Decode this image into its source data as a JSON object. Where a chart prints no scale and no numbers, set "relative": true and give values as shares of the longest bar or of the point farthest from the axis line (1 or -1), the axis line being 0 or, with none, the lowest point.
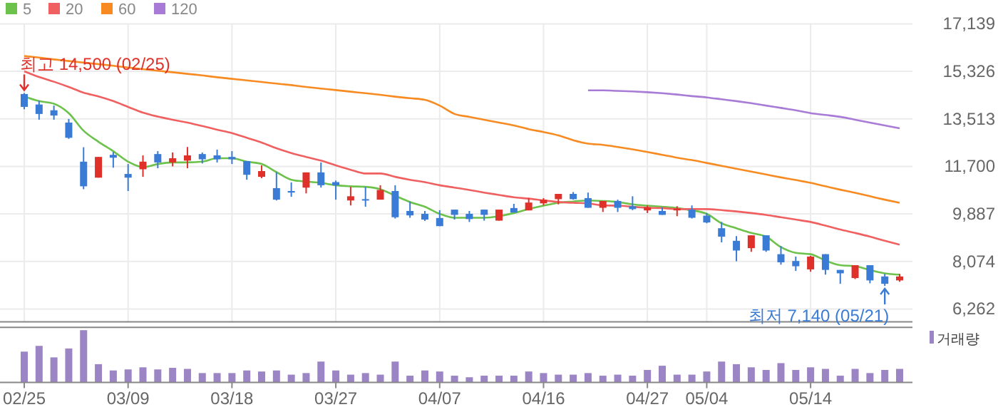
{
  "chart_data": [
    {
      "type": "candlestick",
      "categories": [
        "02/25",
        null,
        null,
        null,
        null,
        null,
        null,
        "03/09",
        null,
        null,
        null,
        null,
        null,
        null,
        "03/18",
        null,
        null,
        null,
        null,
        null,
        null,
        "03/27",
        null,
        null,
        null,
        null,
        null,
        null,
        "04/07",
        null,
        null,
        null,
        null,
        null,
        null,
        "04/16",
        null,
        null,
        null,
        null,
        null,
        null,
        "04/27",
        null,
        null,
        null,
        "05/04",
        null,
        null,
        null,
        null,
        null,
        null,
        "05/14",
        null,
        null,
        null,
        null,
        null,
        null
      ],
      "ohlc": [
        [
          14460,
          14500,
          13880,
          13970
        ],
        [
          14060,
          14200,
          13480,
          13700
        ],
        [
          13840,
          14020,
          13480,
          13640
        ],
        [
          13370,
          13510,
          12750,
          12790
        ],
        [
          11880,
          12430,
          10830,
          10940
        ],
        [
          11270,
          12060,
          11270,
          12060
        ],
        [
          12140,
          12250,
          11650,
          12030
        ],
        [
          11410,
          11790,
          10760,
          11270
        ],
        [
          11590,
          12120,
          11300,
          11880
        ],
        [
          12170,
          12280,
          11630,
          11850
        ],
        [
          11850,
          12230,
          11700,
          12010
        ],
        [
          11920,
          12440,
          11630,
          12120
        ],
        [
          12170,
          12230,
          11810,
          11970
        ],
        [
          12120,
          12340,
          11850,
          11970
        ],
        [
          12060,
          12280,
          11790,
          11970
        ],
        [
          11900,
          11900,
          11190,
          11380
        ],
        [
          11300,
          11740,
          11250,
          11520
        ],
        [
          10870,
          11480,
          10400,
          10430
        ],
        [
          10760,
          11090,
          10540,
          10700
        ],
        [
          10890,
          11470,
          10670,
          11470
        ],
        [
          11470,
          11850,
          10890,
          10980
        ],
        [
          11100,
          11160,
          10430,
          10980
        ],
        [
          10400,
          10920,
          10210,
          10560
        ],
        [
          10450,
          10920,
          10160,
          10400
        ],
        [
          10430,
          10980,
          10430,
          10800
        ],
        [
          10760,
          10980,
          9710,
          9760
        ],
        [
          10000,
          10360,
          9740,
          9830
        ],
        [
          9890,
          10000,
          9620,
          9670
        ],
        [
          9730,
          10030,
          9420,
          9420
        ],
        [
          10050,
          10050,
          9670,
          9850
        ],
        [
          9890,
          10000,
          9580,
          9690
        ],
        [
          10050,
          10050,
          9630,
          9850
        ],
        [
          9630,
          10050,
          9630,
          10050
        ],
        [
          10110,
          10270,
          9940,
          9940
        ],
        [
          10020,
          10490,
          10020,
          10320
        ],
        [
          10290,
          10490,
          10210,
          10430
        ],
        [
          10450,
          10650,
          10250,
          10650
        ],
        [
          10650,
          10720,
          10430,
          10450
        ],
        [
          10490,
          10700,
          10120,
          10120
        ],
        [
          10120,
          10380,
          9960,
          10380
        ],
        [
          10380,
          10430,
          9960,
          10120
        ],
        [
          10180,
          10560,
          10030,
          10070
        ],
        [
          10020,
          10210,
          9920,
          10140
        ],
        [
          10000,
          10140,
          9850,
          9850
        ],
        [
          10020,
          10180,
          9800,
          10090
        ],
        [
          10050,
          10210,
          9710,
          9740
        ],
        [
          9820,
          9920,
          9530,
          9560
        ],
        [
          9340,
          9580,
          8800,
          9020
        ],
        [
          8860,
          9040,
          8080,
          8490
        ],
        [
          8580,
          9070,
          8440,
          9070
        ],
        [
          9070,
          9070,
          8440,
          8490
        ],
        [
          8350,
          8660,
          7950,
          8040
        ],
        [
          8090,
          8260,
          7710,
          7890
        ],
        [
          7770,
          8290,
          7680,
          8260
        ],
        [
          8350,
          8350,
          7570,
          7750
        ],
        [
          7750,
          7750,
          7220,
          7620
        ],
        [
          7440,
          7930,
          7400,
          7930
        ],
        [
          7930,
          7930,
          7240,
          7350
        ],
        [
          7500,
          7600,
          7140,
          7220
        ],
        [
          7350,
          7600,
          7300,
          7500
        ]
      ],
      "series": [
        {
          "name": "5",
          "type": "line",
          "color": "#6cc24a",
          "values": [
            14370,
            14190,
            14090,
            13730,
            13060,
            12640,
            12280,
            11880,
            11670,
            11790,
            11850,
            11850,
            11880,
            12010,
            12010,
            11880,
            11790,
            11480,
            11190,
            11120,
            11070,
            10980,
            10940,
            10920,
            10830,
            10580,
            10340,
            10160,
            9890,
            9740,
            9740,
            9740,
            9800,
            9920,
            10070,
            10200,
            10310,
            10360,
            10400,
            10380,
            10340,
            10250,
            10200,
            10160,
            10110,
            10020,
            9890,
            9530,
            9340,
            9160,
            9020,
            8620,
            8400,
            8350,
            8110,
            7930,
            7890,
            7750,
            7620,
            7570
          ]
        },
        {
          "name": "20",
          "type": "line",
          "color": "#f06060",
          "values": [
            15330,
            15110,
            14930,
            14730,
            14510,
            14370,
            14190,
            13970,
            13750,
            13600,
            13480,
            13370,
            13240,
            13100,
            12970,
            12790,
            12610,
            12390,
            12210,
            12060,
            11920,
            11740,
            11570,
            11430,
            11430,
            11300,
            11190,
            11100,
            10980,
            10890,
            10800,
            10700,
            10610,
            10520,
            10470,
            10400,
            10340,
            10310,
            10290,
            10210,
            10200,
            10160,
            10120,
            10110,
            10070,
            10070,
            10070,
            10030,
            9980,
            9920,
            9850,
            9760,
            9670,
            9580,
            9440,
            9290,
            9160,
            9020,
            8860,
            8710
          ]
        },
        {
          "name": "60",
          "type": "line",
          "color": "#f78b22",
          "values": [
            15910,
            15850,
            15780,
            15720,
            15660,
            15600,
            15540,
            15470,
            15410,
            15350,
            15290,
            15230,
            15170,
            15100,
            15040,
            14980,
            14920,
            14860,
            14800,
            14730,
            14670,
            14610,
            14550,
            14490,
            14430,
            14360,
            14300,
            14240,
            14020,
            13700,
            13590,
            13480,
            13370,
            13260,
            13120,
            13010,
            12880,
            12700,
            12570,
            12520,
            12440,
            12350,
            12250,
            12140,
            12030,
            11940,
            11830,
            11720,
            11610,
            11500,
            11390,
            11280,
            11180,
            11070,
            10940,
            10810,
            10690,
            10560,
            10430,
            10310
          ]
        },
        {
          "name": "120",
          "type": "line",
          "color": "#a77bd6",
          "values": [
            null,
            null,
            null,
            null,
            null,
            null,
            null,
            null,
            null,
            null,
            null,
            null,
            null,
            null,
            null,
            null,
            null,
            null,
            null,
            null,
            null,
            null,
            null,
            null,
            null,
            null,
            null,
            null,
            null,
            null,
            null,
            null,
            null,
            null,
            null,
            null,
            null,
            null,
            14600,
            14600,
            14580,
            14560,
            14530,
            14490,
            14440,
            14380,
            14330,
            14260,
            14190,
            14110,
            14020,
            13930,
            13840,
            13730,
            13660,
            13590,
            13480,
            13370,
            13260,
            13150
          ]
        }
      ],
      "ylim": [
        5772,
        17139
      ],
      "yticks": [
        {
          "value": 6262,
          "label": "6,262"
        },
        {
          "value": 8074,
          "label": "8,074"
        },
        {
          "value": 9887,
          "label": "9,887"
        },
        {
          "value": 11700,
          "label": "11,700"
        },
        {
          "value": 13513,
          "label": "13,513"
        },
        {
          "value": 15326,
          "label": "15,326"
        },
        {
          "value": 17139,
          "label": "17,139"
        }
      ],
      "annotations": [
        {
          "text": "최고 14,500 (02/25)",
          "x": "02/25",
          "y": 14500
        },
        "최저 7,140 (05/21)"
      ],
      "grid": true,
      "legend": "top left",
      "tick_labels": "y"
    },
    {
      "type": "bar",
      "relative": true,
      "categories": [
        "02/25",
        null,
        null,
        null,
        null,
        null,
        null,
        "03/09",
        null,
        null,
        null,
        null,
        null,
        null,
        "03/18",
        null,
        null,
        null,
        null,
        null,
        null,
        "03/27",
        null,
        null,
        null,
        null,
        null,
        null,
        "04/07",
        null,
        null,
        null,
        null,
        null,
        null,
        "04/16",
        null,
        null,
        null,
        null,
        null,
        null,
        "04/27",
        null,
        null,
        null,
        "05/04",
        null,
        null,
        null,
        null,
        null,
        null,
        "05/14",
        null,
        null,
        null,
        null,
        null,
        null
      ],
      "series": [
        {
          "name": "거래량",
          "color": "#9b85c4",
          "values": [
            0.59,
            0.7,
            0.48,
            0.65,
            1,
            0.35,
            0.23,
            0.25,
            0.29,
            0.25,
            0.28,
            0.26,
            0.18,
            0.18,
            0.18,
            0.23,
            0.21,
            0.23,
            0.15,
            0.18,
            0.4,
            0.23,
            0.15,
            0.18,
            0.15,
            0.4,
            0.13,
            0.23,
            0.21,
            0.13,
            0.1,
            0.13,
            0.13,
            0.13,
            0.21,
            0.18,
            0.15,
            0.15,
            0.18,
            0.13,
            0.15,
            0.13,
            0.24,
            0.32,
            0.15,
            0.15,
            0.21,
            0.4,
            0.35,
            0.29,
            0.24,
            0.37,
            0.24,
            0.29,
            0.26,
            0.13,
            0.26,
            0.18,
            0.24,
            0.26
          ]
        }
      ],
      "legend": "top right"
    }
  ]
}
